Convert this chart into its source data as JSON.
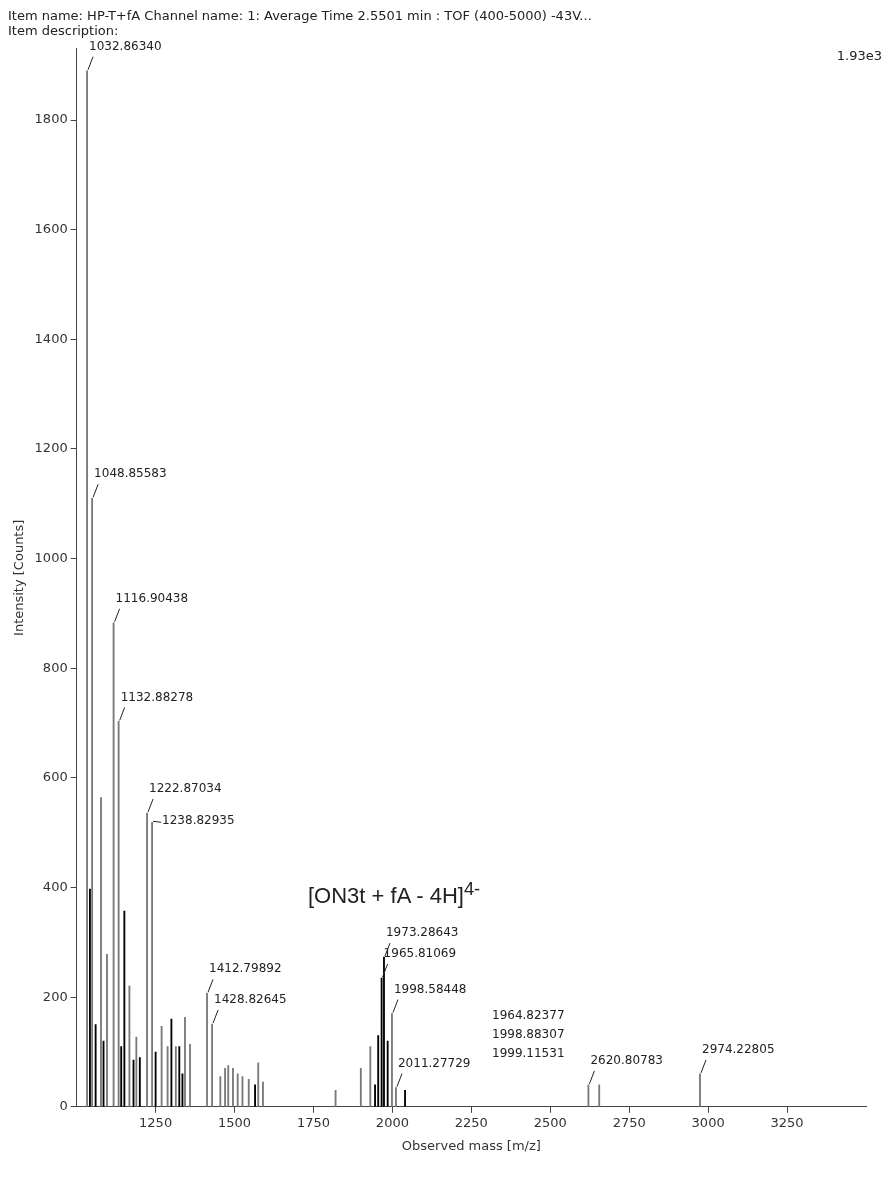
{
  "chart_data": {
    "type": "bar",
    "title": "Item name: HP-T+fA   Channel name: 1: Average Time 2.5501 min : TOF (400-5000) -43V...",
    "subtitle": "Item description:",
    "xlabel": "Observed mass [m/z]",
    "ylabel": "Intensity [Counts]",
    "xlim": [
      1000,
      3500
    ],
    "xticks": [
      1250,
      1500,
      1750,
      2000,
      2250,
      2500,
      2750,
      3000,
      3250
    ],
    "ylim": [
      0,
      1930
    ],
    "yticks": [
      0,
      200,
      400,
      600,
      800,
      1000,
      1200,
      1400,
      1600,
      1800
    ],
    "grid": false,
    "legend": false,
    "annotations": [
      "1.93e3",
      "[ON3t + fA - 4H]$^{4-}$",
      "1964.82377",
      "1998.88307",
      "1999.11531",
      {
        "text": "1032.86340",
        "x": 1032.8634,
        "y": 1890
      },
      {
        "text": "1048.85583",
        "x": 1048.85583,
        "y": 1110
      },
      {
        "text": "1116.90438",
        "x": 1116.90438,
        "y": 883
      },
      {
        "text": "1132.88278",
        "x": 1132.88278,
        "y": 703
      },
      {
        "text": "1222.87034",
        "x": 1222.87034,
        "y": 536
      },
      {
        "text": "1238.82935",
        "x": 1238.82935,
        "y": 519
      },
      {
        "text": "1412.79892",
        "x": 1412.79892,
        "y": 207
      },
      {
        "text": "1428.82645",
        "x": 1428.82645,
        "y": 151
      },
      {
        "text": "1973.28643",
        "x": 1973.28643,
        "y": 273
      },
      {
        "text": "1965.81069",
        "x": 1965.81069,
        "y": 235
      },
      {
        "text": "1998.58448",
        "x": 1998.58448,
        "y": 170
      },
      {
        "text": "2011.27729",
        "x": 2011.27729,
        "y": 35
      },
      {
        "text": "2620.80783",
        "x": 2620.80783,
        "y": 40
      },
      {
        "text": "2974.22805",
        "x": 2974.22805,
        "y": 60
      }
    ],
    "x": [
      1032.8634,
      1042,
      1048.85583,
      1060,
      1077,
      1085,
      1096,
      1116.90438,
      1132.88278,
      1141,
      1151,
      1167,
      1180,
      1189,
      1200,
      1222.87034,
      1238.82935,
      1250,
      1269,
      1288,
      1300,
      1314,
      1325,
      1335,
      1343,
      1359,
      1412.79892,
      1428.82645,
      1455,
      1470,
      1480,
      1495,
      1510,
      1525,
      1545,
      1565,
      1575,
      1590,
      1820,
      1900,
      1930,
      1945,
      1955,
      1965.81069,
      1973.28643,
      1985,
      1998.58448,
      2011.27729,
      2040,
      2620.80783,
      2655,
      2974.22805
    ],
    "values": [
      1890,
      397,
      1110,
      150,
      564,
      120,
      278,
      883,
      703,
      110,
      357,
      220,
      85,
      127,
      90,
      536,
      519,
      100,
      147,
      110,
      160,
      110,
      110,
      60,
      163,
      114,
      207,
      151,
      55,
      70,
      75,
      70,
      60,
      55,
      50,
      40,
      80,
      45,
      30,
      70,
      110,
      40,
      130,
      235,
      273,
      120,
      170,
      35,
      30,
      40,
      40,
      60
    ],
    "colors": [
      "#7a7a7a",
      "#000000",
      "#7a7a7a",
      "#000000",
      "#7a7a7a",
      "#000000",
      "#7a7a7a",
      "#7a7a7a",
      "#7a7a7a",
      "#000000",
      "#000000",
      "#7a7a7a",
      "#000000",
      "#7a7a7a",
      "#000000",
      "#7a7a7a",
      "#7a7a7a",
      "#000000",
      "#7a7a7a",
      "#7a7a7a",
      "#000000",
      "#7a7a7a",
      "#000000",
      "#000000",
      "#7a7a7a",
      "#7a7a7a",
      "#7a7a7a",
      "#7a7a7a",
      "#7a7a7a",
      "#7a7a7a",
      "#7a7a7a",
      "#7a7a7a",
      "#7a7a7a",
      "#7a7a7a",
      "#7a7a7a",
      "#000000",
      "#7a7a7a",
      "#7a7a7a",
      "#7a7a7a",
      "#7a7a7a",
      "#7a7a7a",
      "#000000",
      "#000000",
      "#000000",
      "#000000",
      "#000000",
      "#7a7a7a",
      "#7a7a7a",
      "#000000",
      "#7a7a7a",
      "#7a7a7a",
      "#7a7a7a"
    ]
  }
}
